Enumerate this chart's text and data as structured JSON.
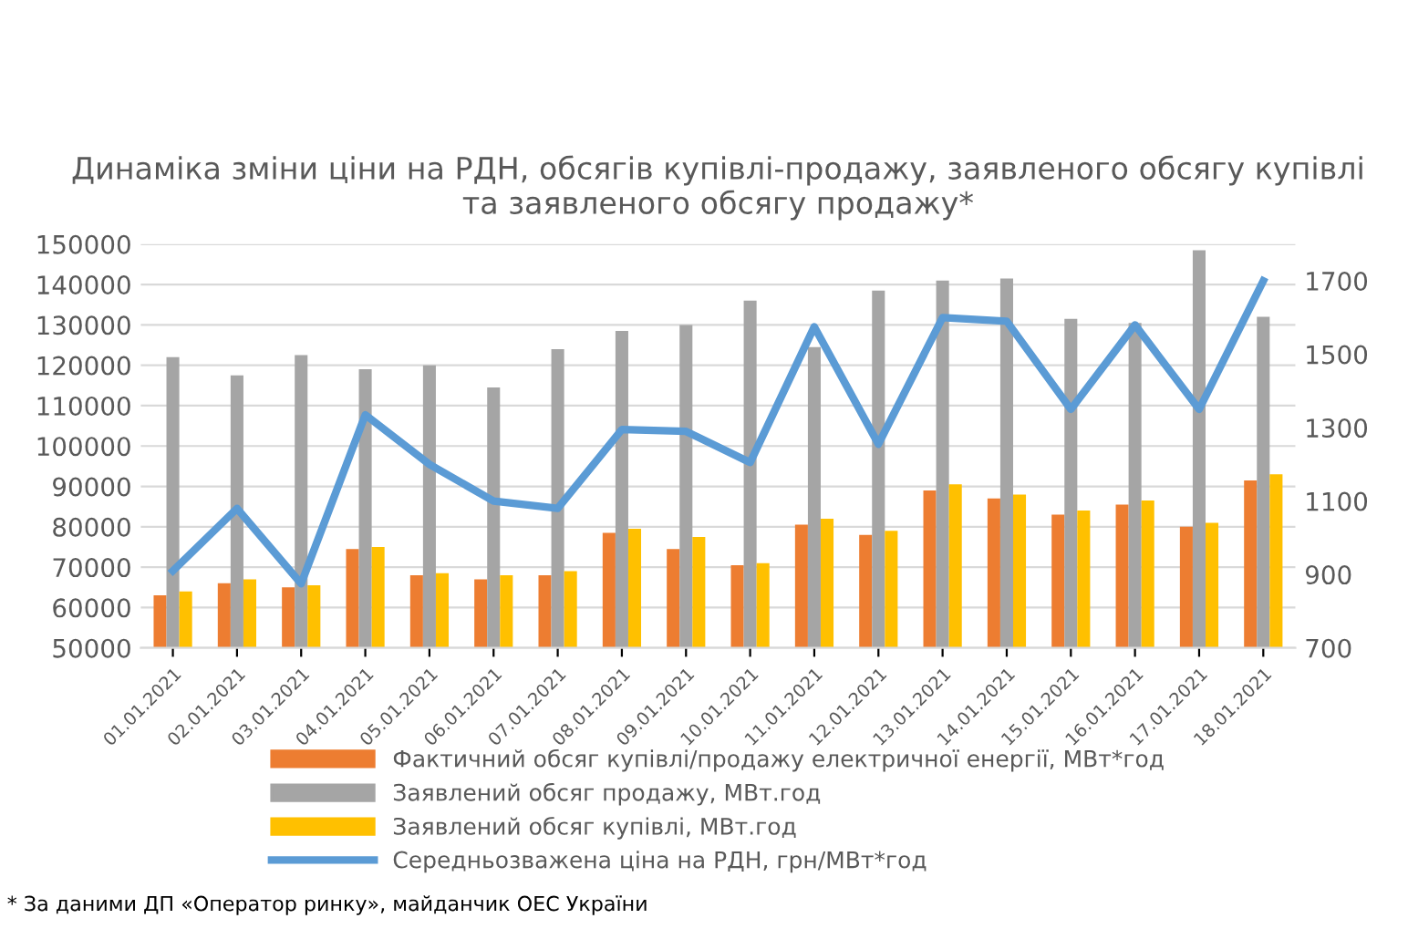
{
  "chart_data": {
    "type": "bar",
    "title": "Динаміка зміни ціни на РДН, обсягів купівлі-продажу, заявленого обсягу купівлі\nта заявленого обсягу продажу*",
    "categories": [
      "01.01.2021",
      "02.01.2021",
      "03.01.2021",
      "04.01.2021",
      "05.01.2021",
      "06.01.2021",
      "07.01.2021",
      "08.01.2021",
      "09.01.2021",
      "10.01.2021",
      "11.01.2021",
      "12.01.2021",
      "13.01.2021",
      "14.01.2021",
      "15.01.2021",
      "16.01.2021",
      "17.01.2021",
      "18.01.2021"
    ],
    "series": [
      {
        "name": "Фактичний обсяг купівлі/продажу електричної енергії, МВт*год",
        "color": "#ed7d31",
        "values": [
          63000,
          66000,
          65000,
          74500,
          68000,
          67000,
          68000,
          78500,
          74500,
          70500,
          80500,
          78000,
          89000,
          87000,
          83000,
          85500,
          80000,
          91500
        ]
      },
      {
        "name": "Заявлений обсяг продажу, МВт.год",
        "color": "#a5a5a5",
        "values": [
          122000,
          117500,
          122500,
          119000,
          120000,
          114500,
          124000,
          128500,
          130000,
          136000,
          124500,
          138500,
          141000,
          141500,
          131500,
          130500,
          148500,
          132000
        ]
      },
      {
        "name": "Заявлений обсяг купівлі, МВт.год",
        "color": "#ffc000",
        "values": [
          64000,
          67000,
          65500,
          75000,
          68500,
          68000,
          69000,
          79500,
          77500,
          71000,
          82000,
          79000,
          90500,
          88000,
          84000,
          86500,
          81000,
          93000
        ]
      },
      {
        "name": "Середньозважена ціна на РДН, грн/МВт*год",
        "color": "#5b9bd5",
        "type": "line",
        "axis": "y2",
        "values": [
          910,
          1080,
          875,
          1335,
          1200,
          1100,
          1080,
          1295,
          1290,
          1205,
          1575,
          1255,
          1600,
          1590,
          1350,
          1580,
          1350,
          1700
        ]
      }
    ],
    "ylim": [
      50000,
      150000
    ],
    "yticks": [
      50000,
      60000,
      70000,
      80000,
      90000,
      100000,
      110000,
      120000,
      130000,
      140000,
      150000
    ],
    "y2lim": [
      700,
      1800
    ],
    "y2ticks": [
      700,
      900,
      1100,
      1300,
      1500,
      1700,
      {
        "value": 1800,
        "label": null
      }
    ],
    "grid": "y",
    "legend": "bottom",
    "marker": "none",
    "line_style": "solid",
    "annotations": [
      "* За даними ДП «Оператор ринку», майданчик ОЕС України"
    ]
  }
}
